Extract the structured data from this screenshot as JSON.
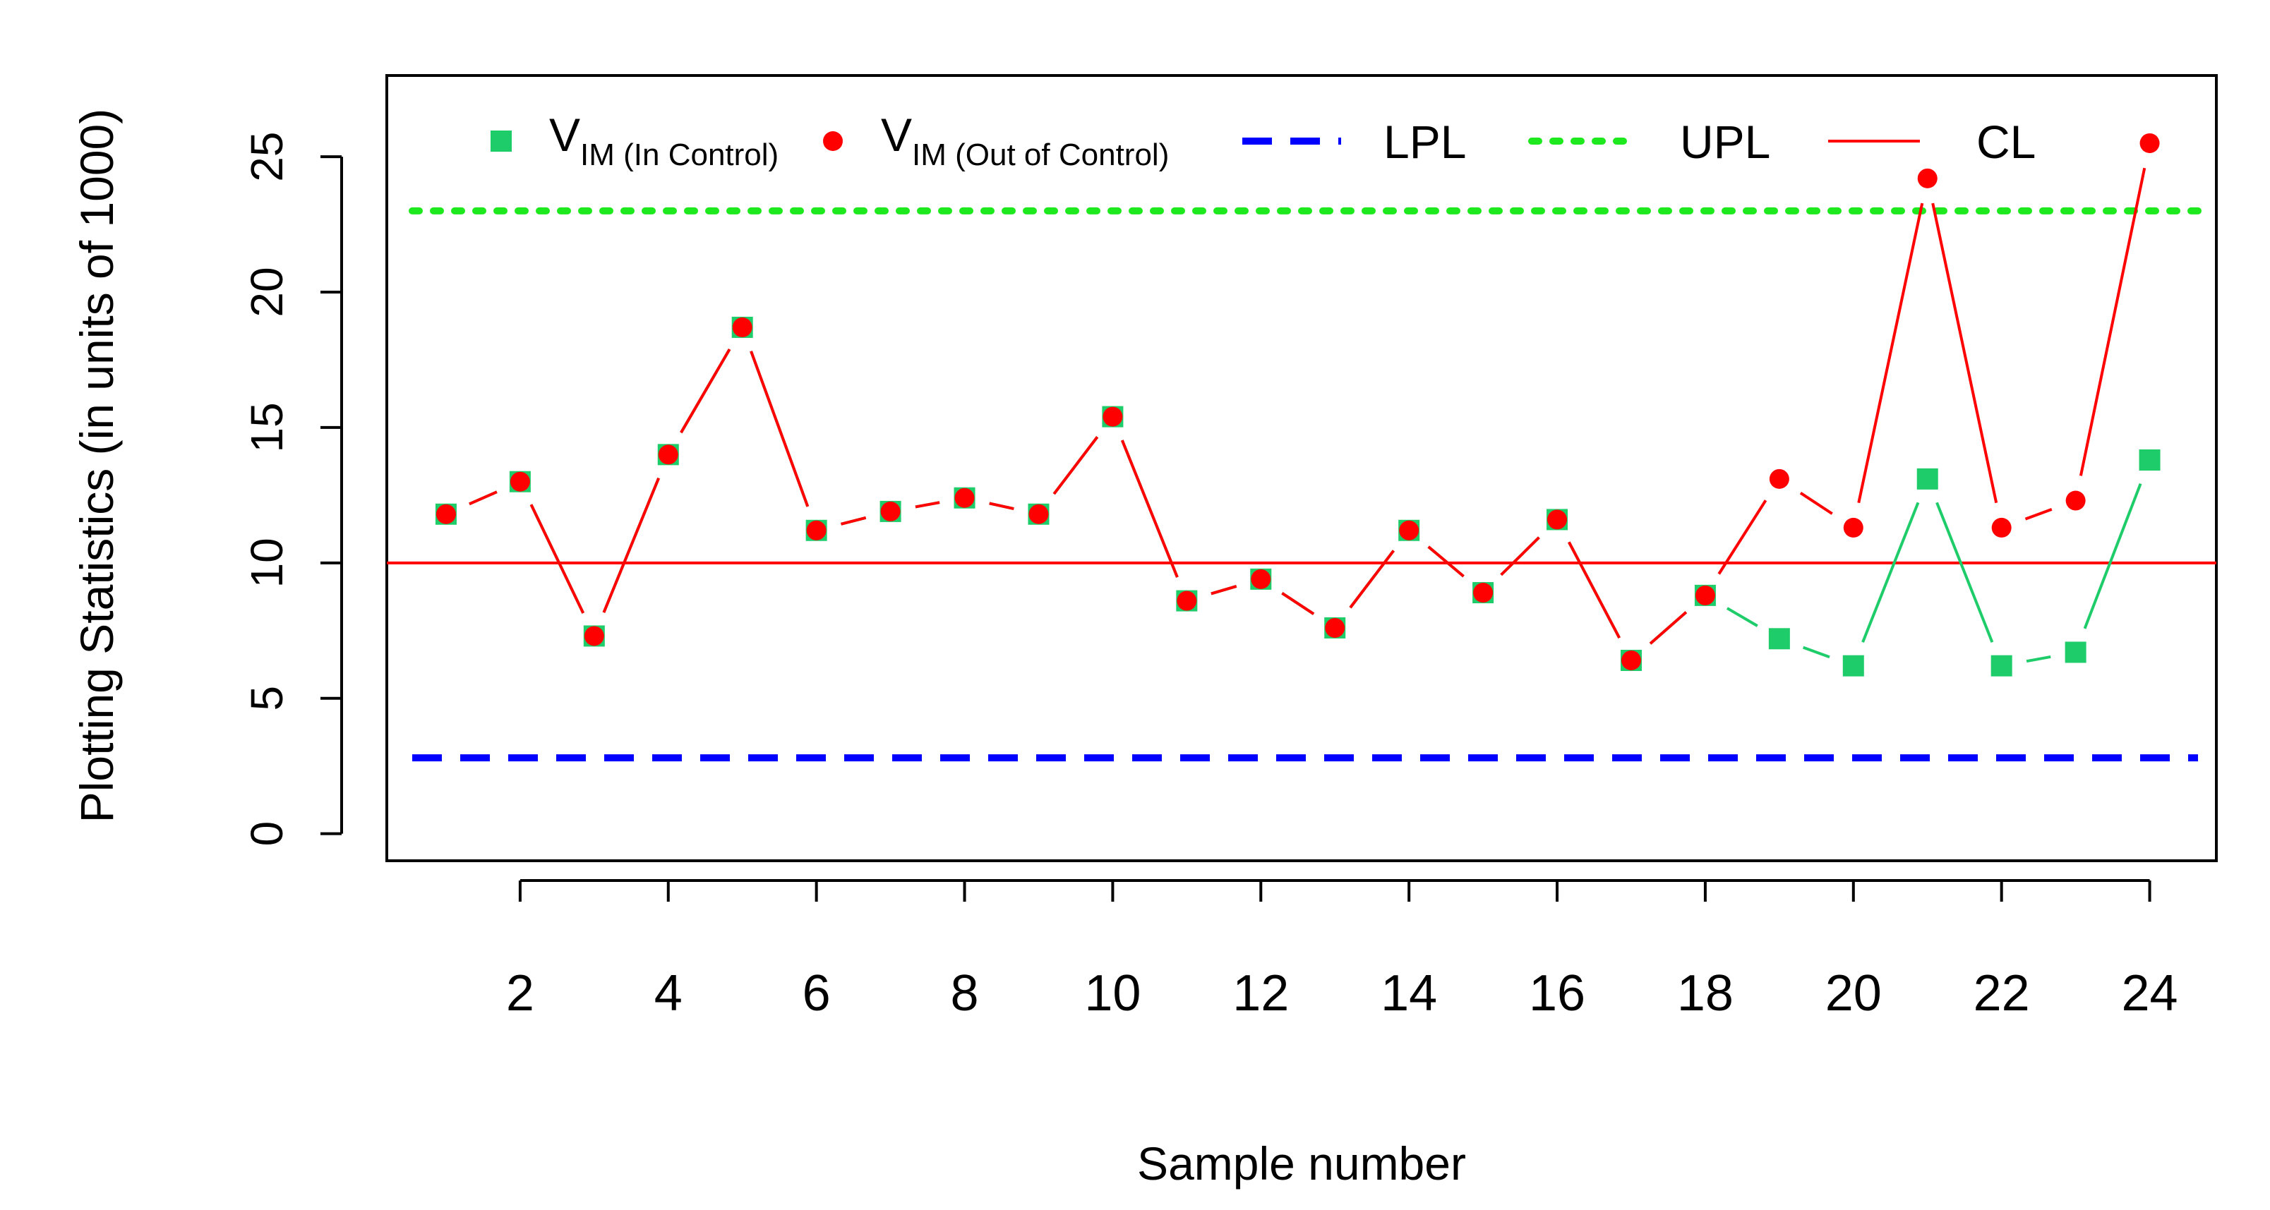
{
  "chart_data": {
    "type": "line",
    "title": "",
    "xlabel": "Sample number",
    "ylabel": "Plotting Statistics (in units of 1000)",
    "xlim": [
      0.2,
      24.9
    ],
    "ylim": [
      -1,
      28
    ],
    "xticks": [
      2,
      4,
      6,
      8,
      10,
      12,
      14,
      16,
      18,
      20,
      22,
      24
    ],
    "yticks": [
      0,
      5,
      10,
      15,
      20,
      25
    ],
    "x": [
      1,
      2,
      3,
      4,
      5,
      6,
      7,
      8,
      9,
      10,
      11,
      12,
      13,
      14,
      15,
      16,
      17,
      18,
      19,
      20,
      21,
      22,
      23,
      24
    ],
    "series": [
      {
        "name": "V_IM (In Control)",
        "legend_main": "V",
        "legend_sub": "IM (In Control)",
        "color": "#1fcc6a",
        "marker": "square",
        "values": [
          11.8,
          13.0,
          7.3,
          14.0,
          18.7,
          11.2,
          11.9,
          12.4,
          11.8,
          15.4,
          8.6,
          9.4,
          7.6,
          11.2,
          8.9,
          11.6,
          6.4,
          8.8,
          7.2,
          6.2,
          13.1,
          6.2,
          6.7,
          13.8
        ]
      },
      {
        "name": "V_IM (Out of Control)",
        "legend_main": "V",
        "legend_sub": "IM (Out of Control)",
        "color": "#ff0000",
        "marker": "circle",
        "values": [
          11.8,
          13.0,
          7.3,
          14.0,
          18.7,
          11.2,
          11.9,
          12.4,
          11.8,
          15.4,
          8.6,
          9.4,
          7.6,
          11.2,
          8.9,
          11.6,
          6.4,
          8.8,
          13.1,
          11.3,
          24.2,
          11.3,
          12.3,
          25.5
        ]
      }
    ],
    "reference_lines": [
      {
        "name": "LPL",
        "label": "LPL",
        "value": 2.8,
        "color": "#0000ff",
        "style": "dashed"
      },
      {
        "name": "UPL",
        "label": "UPL",
        "value": 23.0,
        "color": "#1ee81e",
        "style": "dotted"
      },
      {
        "name": "CL",
        "label": "CL",
        "value": 10.0,
        "color": "#ff0000",
        "style": "solid"
      }
    ],
    "legend_position": "top",
    "grid": false
  }
}
